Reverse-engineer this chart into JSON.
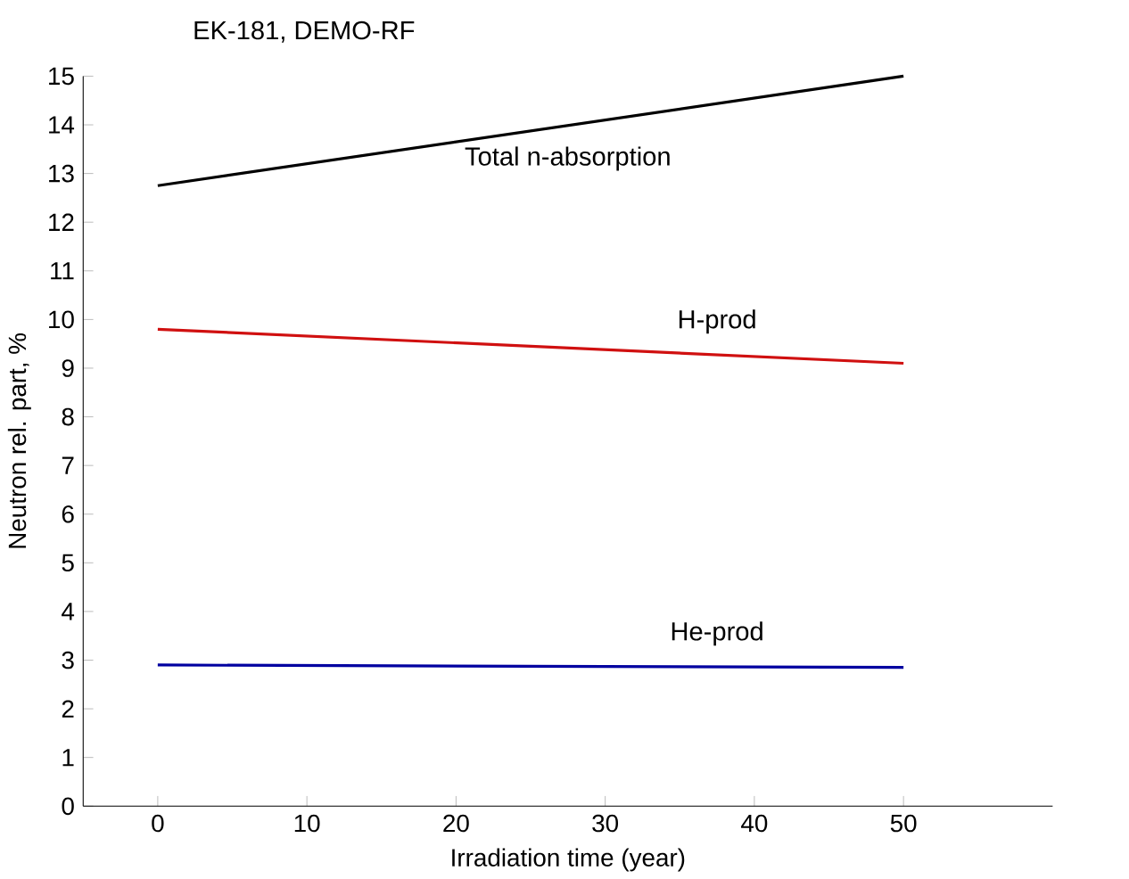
{
  "chart_data": {
    "type": "line",
    "title": "EK-181, DEMO-RF",
    "xlabel": "Irradiation time  (year)",
    "ylabel": "Neutron rel. part,  %",
    "x": [
      0,
      50
    ],
    "series": [
      {
        "name": "Total n-absorption",
        "color": "#000000",
        "values": [
          12.75,
          15.0
        ]
      },
      {
        "name": "H-prod",
        "color": "#d01010",
        "values": [
          9.8,
          9.1
        ]
      },
      {
        "name": "He-prod",
        "color": "#0000a0",
        "values": [
          2.9,
          2.85
        ]
      }
    ],
    "xlim": [
      -5,
      60
    ],
    "ylim": [
      0,
      15
    ],
    "xticks": [
      0,
      10,
      20,
      30,
      40,
      50
    ],
    "yticks": [
      0,
      1,
      2,
      3,
      4,
      5,
      6,
      7,
      8,
      9,
      10,
      11,
      12,
      13,
      14,
      15
    ],
    "grid": false,
    "marker": "none",
    "line_style": "solid"
  }
}
